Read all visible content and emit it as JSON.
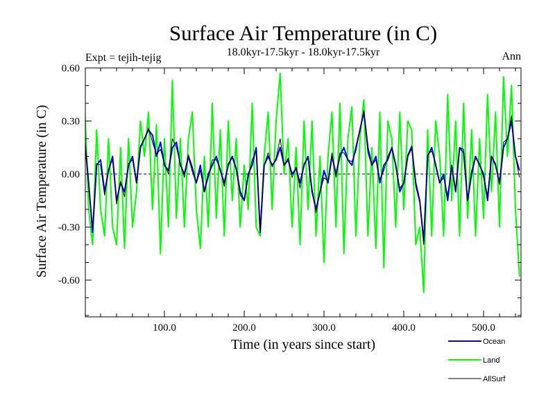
{
  "chart_data": {
    "type": "line",
    "title": "Surface Air Temperature (in C)",
    "subtitle": "18.0kyr-17.5kyr - 18.0kyr-17.5kyr",
    "left_label": "Expt = tejih-tejig",
    "right_label": "Ann",
    "xlabel": "Time (in years since start)",
    "ylabel": "Surface Air Temperature (in C)",
    "xlim": [
      0,
      547
    ],
    "ylim": [
      -0.8,
      0.6
    ],
    "xticks": [
      100,
      200,
      300,
      400,
      500
    ],
    "xtick_labels": [
      "100.0",
      "200.0",
      "300.0",
      "400.0",
      "500.0"
    ],
    "yticks": [
      0.6,
      0.3,
      0.0,
      -0.3,
      -0.6
    ],
    "ytick_labels": [
      "0.60",
      "0.30",
      "0.00",
      "-0.30",
      "-0.60"
    ],
    "zero_line": "dashed",
    "legend_position": "bottom-right",
    "x_step": 5,
    "series": [
      {
        "name": "Ocean",
        "color": "#0000ff",
        "values": [
          0.2,
          -0.05,
          -0.33,
          0.05,
          0.08,
          -0.1,
          0.02,
          0.1,
          -0.15,
          -0.05,
          -0.1,
          0.05,
          0.1,
          -0.05,
          0.15,
          0.2,
          0.25,
          0.22,
          0.1,
          0.18,
          0.05,
          0.02,
          0.15,
          0.18,
          0.05,
          0.0,
          0.1,
          0.02,
          -0.05,
          0.05,
          -0.1,
          0.0,
          0.05,
          0.1,
          0.02,
          -0.05,
          0.05,
          0.1,
          0.03,
          -0.1,
          -0.15,
          0.0,
          0.05,
          0.15,
          -0.33,
          0.05,
          0.1,
          0.05,
          0.08,
          0.15,
          0.05,
          0.08,
          0.0,
          0.03,
          -0.05,
          0.05,
          0.1,
          -0.1,
          -0.2,
          -0.1,
          0.02,
          -0.05,
          0.1,
          0.0,
          0.1,
          0.15,
          0.08,
          0.05,
          0.15,
          0.25,
          0.35,
          0.15,
          0.05,
          0.1,
          -0.05,
          0.05,
          0.08,
          0.15,
          0.05,
          -0.1,
          -0.05,
          0.1,
          0.15,
          -0.05,
          -0.15,
          -0.38,
          0.1,
          0.15,
          0.05,
          -0.05,
          0.0,
          -0.15,
          0.05,
          -0.1,
          0.15,
          0.12,
          -0.15,
          0.0,
          0.1,
          0.05,
          0.0,
          -0.15,
          0.1,
          0.05,
          -0.05,
          0.15,
          0.2,
          0.3,
          0.1,
          0.02
        ]
      },
      {
        "name": "Land",
        "color": "#00ff00",
        "values": [
          0.4,
          -0.2,
          -0.4,
          0.25,
          -0.2,
          -0.35,
          0.2,
          -0.3,
          -0.4,
          0.15,
          -0.42,
          0.2,
          -0.3,
          -0.1,
          0.3,
          0.1,
          0.35,
          -0.2,
          0.28,
          -0.45,
          0.2,
          -0.3,
          0.53,
          -0.25,
          0.2,
          -0.3,
          0.2,
          0.35,
          -0.2,
          -0.42,
          0.1,
          -0.3,
          0.4,
          -0.25,
          0.25,
          -0.35,
          0.3,
          -0.15,
          0.2,
          -0.3,
          0.05,
          -0.2,
          0.4,
          -0.3,
          -0.35,
          0.1,
          0.35,
          -0.2,
          0.3,
          0.57,
          0.0,
          0.2,
          -0.3,
          0.15,
          -0.4,
          0.3,
          -0.2,
          0.3,
          -0.35,
          0.1,
          -0.5,
          0.1,
          0.35,
          -0.3,
          0.4,
          -0.45,
          0.2,
          0.38,
          -0.35,
          0.2,
          0.42,
          -0.35,
          0.15,
          -0.42,
          0.35,
          -0.53,
          0.3,
          0.2,
          -0.3,
          0.35,
          -0.2,
          0.3,
          0.25,
          -0.4,
          -0.3,
          -0.67,
          0.25,
          -0.35,
          0.3,
          0.1,
          -0.35,
          0.45,
          -0.15,
          0.3,
          -0.35,
          0.4,
          -0.25,
          0.25,
          -0.35,
          0.2,
          -0.25,
          0.45,
          -0.1,
          0.35,
          -0.3,
          0.55,
          0.1,
          0.5,
          -0.2,
          -0.58
        ]
      },
      {
        "name": "AllSurf",
        "color": "#000000",
        "values": [
          0.22,
          -0.06,
          -0.3,
          0.06,
          0.05,
          -0.12,
          0.03,
          0.08,
          -0.17,
          -0.04,
          -0.13,
          0.06,
          0.08,
          -0.05,
          0.16,
          0.2,
          0.26,
          0.18,
          0.11,
          0.14,
          0.06,
          0.0,
          0.2,
          0.15,
          0.06,
          -0.02,
          0.11,
          0.04,
          -0.05,
          0.02,
          -0.1,
          -0.02,
          0.08,
          0.08,
          0.03,
          -0.07,
          0.06,
          0.09,
          0.03,
          -0.12,
          -0.15,
          -0.02,
          0.08,
          0.13,
          -0.33,
          0.05,
          0.12,
          0.04,
          0.09,
          0.2,
          0.05,
          0.09,
          -0.02,
          0.04,
          -0.08,
          0.06,
          0.09,
          -0.08,
          -0.22,
          -0.1,
          -0.02,
          -0.04,
          0.12,
          -0.02,
          0.12,
          0.12,
          0.08,
          0.07,
          0.13,
          0.25,
          0.36,
          0.12,
          0.05,
          0.08,
          -0.03,
          0.02,
          0.1,
          0.15,
          0.04,
          -0.08,
          -0.05,
          0.11,
          0.16,
          -0.07,
          -0.16,
          -0.4,
          0.11,
          0.13,
          0.06,
          -0.05,
          -0.02,
          -0.12,
          0.04,
          -0.09,
          0.15,
          0.14,
          -0.15,
          0.02,
          0.09,
          0.06,
          -0.02,
          -0.12,
          0.1,
          0.06,
          -0.06,
          0.18,
          0.2,
          0.33,
          0.1,
          -0.02
        ]
      }
    ]
  }
}
